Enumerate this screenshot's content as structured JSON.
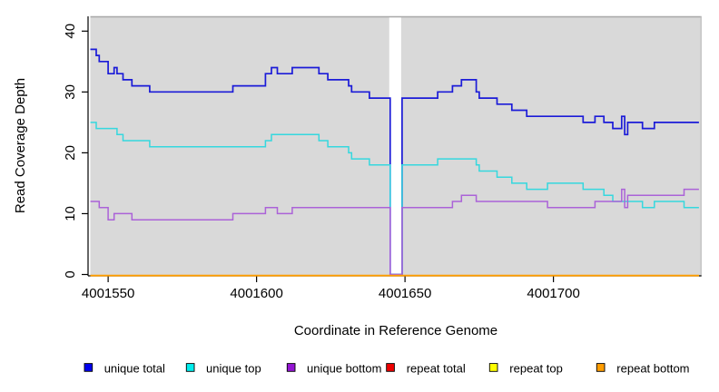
{
  "chart_data": {
    "type": "line",
    "subtype": "step-coverage-plot",
    "title": "",
    "xlabel": "Coordinate in Reference Genome",
    "ylabel": "Read Coverage Depth",
    "xlim": [
      4001544,
      4001749
    ],
    "ylim": [
      0,
      42
    ],
    "x_ticks": [
      4001550,
      4001600,
      4001650,
      4001700
    ],
    "y_ticks": [
      0,
      10,
      20,
      30,
      40
    ],
    "grid": "off",
    "panel_bg": "#d9d9d9",
    "panel_border": "#a8a8a8",
    "gap_region": {
      "start": 4001645,
      "end": 4001649,
      "fill": "#ffffff",
      "note": "white band where coverage drops to 0"
    },
    "legend_position": "bottom",
    "series": [
      {
        "name": "unique total",
        "color": "#1b1bd8",
        "width": 1.7,
        "segments": [
          [
            4001544,
            4001545,
            37
          ],
          [
            4001546,
            4001546,
            36
          ],
          [
            4001547,
            4001549,
            35
          ],
          [
            4001550,
            4001551,
            33
          ],
          [
            4001552,
            4001552,
            34
          ],
          [
            4001553,
            4001554,
            33
          ],
          [
            4001555,
            4001557,
            32
          ],
          [
            4001558,
            4001563,
            31
          ],
          [
            4001564,
            4001591,
            30
          ],
          [
            4001592,
            4001602,
            31
          ],
          [
            4001603,
            4001604,
            33
          ],
          [
            4001605,
            4001606,
            34
          ],
          [
            4001607,
            4001611,
            33
          ],
          [
            4001612,
            4001620,
            34
          ],
          [
            4001621,
            4001623,
            33
          ],
          [
            4001624,
            4001630,
            32
          ],
          [
            4001631,
            4001631,
            31
          ],
          [
            4001632,
            4001637,
            30
          ],
          [
            4001638,
            4001644,
            29
          ],
          [
            4001645,
            4001648,
            0
          ],
          [
            4001649,
            4001660,
            29
          ],
          [
            4001661,
            4001665,
            30
          ],
          [
            4001666,
            4001668,
            31
          ],
          [
            4001669,
            4001673,
            32
          ],
          [
            4001674,
            4001674,
            30
          ],
          [
            4001675,
            4001680,
            29
          ],
          [
            4001681,
            4001685,
            28
          ],
          [
            4001686,
            4001690,
            27
          ],
          [
            4001691,
            4001709,
            26
          ],
          [
            4001710,
            4001713,
            25
          ],
          [
            4001714,
            4001716,
            26
          ],
          [
            4001717,
            4001719,
            25
          ],
          [
            4001720,
            4001722,
            24
          ],
          [
            4001723,
            4001723,
            26
          ],
          [
            4001724,
            4001724,
            23
          ],
          [
            4001725,
            4001729,
            25
          ],
          [
            4001730,
            4001733,
            24
          ],
          [
            4001734,
            4001748,
            25
          ]
        ]
      },
      {
        "name": "unique top",
        "color": "#35d8de",
        "width": 1.5,
        "segments": [
          [
            4001544,
            4001545,
            25
          ],
          [
            4001546,
            4001552,
            24
          ],
          [
            4001553,
            4001554,
            23
          ],
          [
            4001555,
            4001563,
            22
          ],
          [
            4001564,
            4001602,
            21
          ],
          [
            4001603,
            4001604,
            22
          ],
          [
            4001605,
            4001620,
            23
          ],
          [
            4001621,
            4001623,
            22
          ],
          [
            4001624,
            4001630,
            21
          ],
          [
            4001631,
            4001631,
            20
          ],
          [
            4001632,
            4001637,
            19
          ],
          [
            4001638,
            4001644,
            18
          ],
          [
            4001645,
            4001648,
            0
          ],
          [
            4001649,
            4001660,
            18
          ],
          [
            4001661,
            4001673,
            19
          ],
          [
            4001674,
            4001674,
            18
          ],
          [
            4001675,
            4001680,
            17
          ],
          [
            4001681,
            4001685,
            16
          ],
          [
            4001686,
            4001690,
            15
          ],
          [
            4001691,
            4001697,
            14
          ],
          [
            4001698,
            4001709,
            15
          ],
          [
            4001710,
            4001716,
            14
          ],
          [
            4001717,
            4001719,
            13
          ],
          [
            4001720,
            4001729,
            12
          ],
          [
            4001730,
            4001733,
            11
          ],
          [
            4001734,
            4001743,
            12
          ],
          [
            4001744,
            4001748,
            11
          ]
        ]
      },
      {
        "name": "unique bottom",
        "color": "#ab62d8",
        "width": 1.5,
        "segments": [
          [
            4001544,
            4001546,
            12
          ],
          [
            4001547,
            4001549,
            11
          ],
          [
            4001550,
            4001551,
            9
          ],
          [
            4001552,
            4001557,
            10
          ],
          [
            4001558,
            4001591,
            9
          ],
          [
            4001592,
            4001602,
            10
          ],
          [
            4001603,
            4001606,
            11
          ],
          [
            4001607,
            4001611,
            10
          ],
          [
            4001612,
            4001644,
            11
          ],
          [
            4001645,
            4001648,
            0
          ],
          [
            4001649,
            4001665,
            11
          ],
          [
            4001666,
            4001668,
            12
          ],
          [
            4001669,
            4001673,
            13
          ],
          [
            4001674,
            4001697,
            12
          ],
          [
            4001698,
            4001713,
            11
          ],
          [
            4001714,
            4001722,
            12
          ],
          [
            4001723,
            4001723,
            14
          ],
          [
            4001724,
            4001724,
            11
          ],
          [
            4001725,
            4001743,
            13
          ],
          [
            4001744,
            4001748,
            14
          ]
        ]
      },
      {
        "name": "repeat total",
        "color": "#ee0000",
        "width": 1.5,
        "segments": [
          [
            4001544,
            4001748,
            0
          ]
        ]
      },
      {
        "name": "repeat top",
        "color": "#ffff00",
        "width": 1.5,
        "segments": [
          [
            4001544,
            4001748,
            0
          ]
        ]
      },
      {
        "name": "repeat bottom",
        "color": "#ff9d00",
        "width": 1.8,
        "segments": [
          [
            4001544,
            4001748,
            0
          ]
        ]
      }
    ]
  },
  "axes": {
    "x_label": "Coordinate in Reference Genome",
    "y_label": "Read Coverage Depth",
    "x_tick_labels": [
      "4001550",
      "4001600",
      "4001650",
      "4001700"
    ],
    "y_tick_labels": [
      "0",
      "10",
      "20",
      "30",
      "40"
    ]
  },
  "legend": {
    "items": [
      {
        "label": "unique total",
        "color": "#0000ee"
      },
      {
        "label": "unique top",
        "color": "#00eeee"
      },
      {
        "label": "unique bottom",
        "color": "#9415d3"
      },
      {
        "label": "repeat total",
        "color": "#ee0000"
      },
      {
        "label": "repeat top",
        "color": "#ffff00"
      },
      {
        "label": "repeat bottom",
        "color": "#ff9d00"
      }
    ]
  }
}
